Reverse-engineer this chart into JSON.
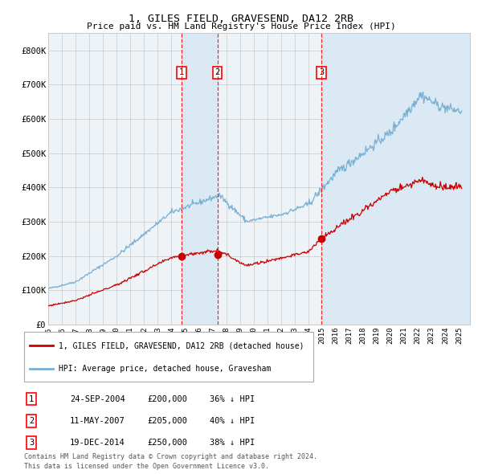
{
  "title": "1, GILES FIELD, GRAVESEND, DA12 2RB",
  "subtitle": "Price paid vs. HM Land Registry's House Price Index (HPI)",
  "legend_line1": "1, GILES FIELD, GRAVESEND, DA12 2RB (detached house)",
  "legend_line2": "HPI: Average price, detached house, Gravesham",
  "red_color": "#cc0000",
  "blue_color": "#7ab0d4",
  "blue_fill_color": "#d8e8f3",
  "background_color": "#ffffff",
  "grid_color": "#c8c8c8",
  "transactions": [
    {
      "num": 1,
      "date": "24-SEP-2004",
      "price": "£200,000",
      "hpi_diff": "36% ↓ HPI"
    },
    {
      "num": 2,
      "date": "11-MAY-2007",
      "price": "£205,000",
      "hpi_diff": "40% ↓ HPI"
    },
    {
      "num": 3,
      "date": "19-DEC-2014",
      "price": "£250,000",
      "hpi_diff": "38% ↓ HPI"
    }
  ],
  "transaction_dates_decimal": [
    2004.73,
    2007.36,
    2014.96
  ],
  "transaction_prices": [
    200000,
    205000,
    250000
  ],
  "ylim": [
    0,
    850000
  ],
  "yticks": [
    0,
    100000,
    200000,
    300000,
    400000,
    500000,
    600000,
    700000,
    800000
  ],
  "ytick_labels": [
    "£0",
    "£100K",
    "£200K",
    "£300K",
    "£400K",
    "£500K",
    "£600K",
    "£700K",
    "£800K"
  ],
  "xlim_start": 1995.0,
  "xlim_end": 2025.8,
  "footer_line1": "Contains HM Land Registry data © Crown copyright and database right 2024.",
  "footer_line2": "This data is licensed under the Open Government Licence v3.0."
}
